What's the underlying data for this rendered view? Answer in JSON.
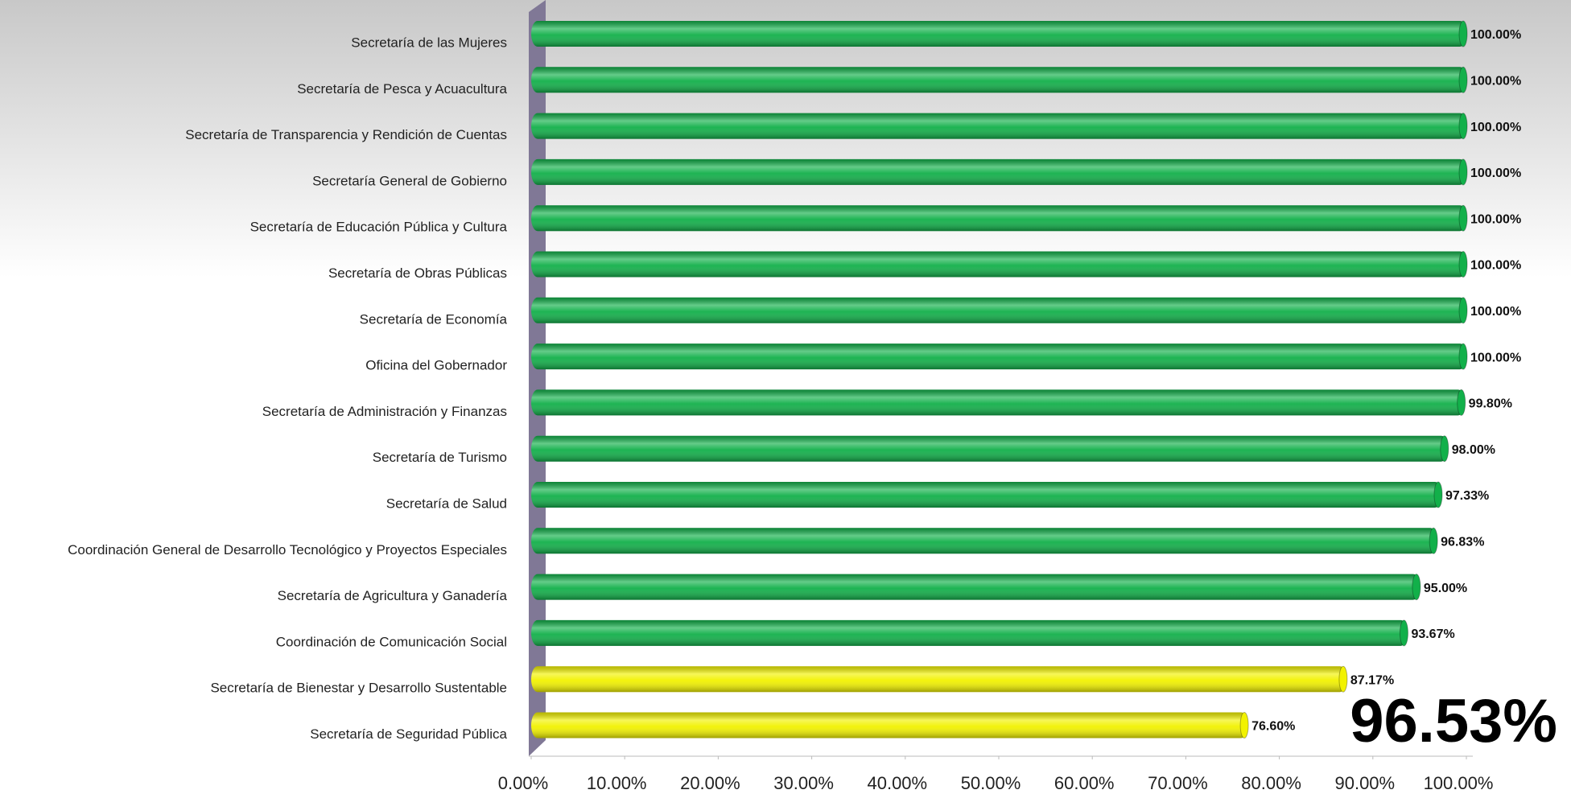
{
  "chart_data": {
    "type": "bar",
    "orientation": "horizontal",
    "categories": [
      "Secretaría de las Mujeres",
      "Secretaría de Pesca y Acuacultura",
      "Secretaría de Transparencia y Rendición de Cuentas",
      "Secretaría General de Gobierno",
      "Secretaría de Educación Pública y Cultura",
      "Secretaría de Obras Públicas",
      "Secretaría de Economía",
      "Oficina del Gobernador",
      "Secretaría de Administración y Finanzas",
      "Secretaría de Turismo",
      "Secretaría de Salud",
      "Coordinación General de Desarrollo Tecnológico y Proyectos Especiales",
      "Secretaría de Agricultura y Ganadería",
      "Coordinación de Comunicación Social",
      "Secretaría de Bienestar y Desarrollo Sustentable",
      "Secretaría de Seguridad Pública"
    ],
    "values": [
      100,
      100,
      100,
      100,
      100,
      100,
      100,
      100,
      99.8,
      98,
      97.33,
      96.83,
      95,
      93.67,
      87.17,
      76.6
    ],
    "value_labels": [
      "100.00%",
      "100.00%",
      "100.00%",
      "100.00%",
      "100.00%",
      "100.00%",
      "100.00%",
      "100.00%",
      "99.80%",
      "98.00%",
      "97.33%",
      "96.83%",
      "95.00%",
      "93.67%",
      "87.17%",
      "76.60%"
    ],
    "colors": [
      "#12b04a",
      "#12b04a",
      "#12b04a",
      "#12b04a",
      "#12b04a",
      "#12b04a",
      "#12b04a",
      "#12b04a",
      "#12b04a",
      "#12b04a",
      "#12b04a",
      "#12b04a",
      "#12b04a",
      "#12b04a",
      "#f2f200",
      "#f2f200"
    ],
    "xlim": [
      0,
      100
    ],
    "xticks": [
      {
        "value": 0,
        "label": "0.00%"
      },
      {
        "value": 10,
        "label": "10.00%"
      },
      {
        "value": 20,
        "label": "20.00%"
      },
      {
        "value": 30,
        "label": "30.00%"
      },
      {
        "value": 40,
        "label": "40.00%"
      },
      {
        "value": 50,
        "label": "50.00%"
      },
      {
        "value": 60,
        "label": "60.00%"
      },
      {
        "value": 70,
        "label": "70.00%"
      },
      {
        "value": 80,
        "label": "80.00%"
      },
      {
        "value": 90,
        "label": "90.00%"
      },
      {
        "value": 100,
        "label": "100.00%"
      }
    ],
    "annotation": "96.53%"
  }
}
